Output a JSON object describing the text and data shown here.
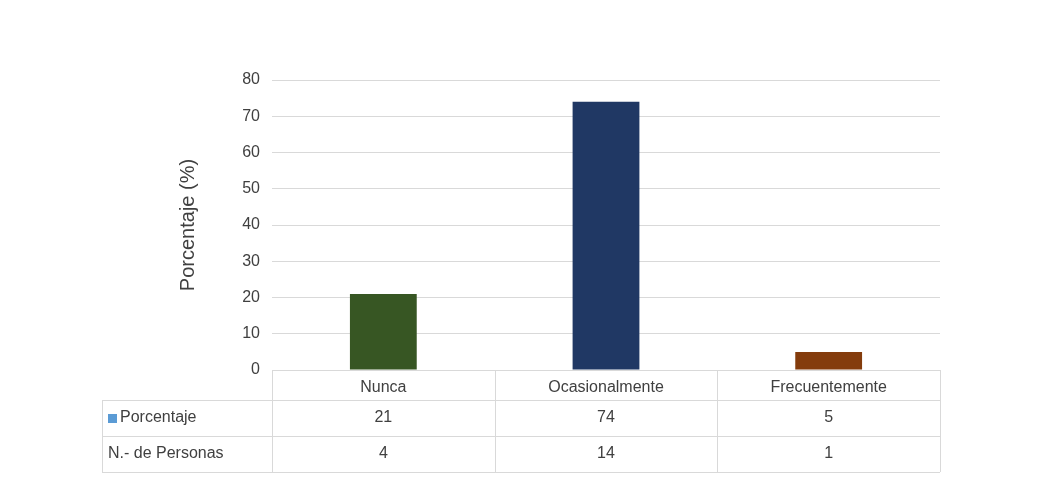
{
  "chart_data": {
    "type": "bar",
    "ylabel": "Porcentaje (%)",
    "categories": [
      "Nunca",
      "Ocasionalmente",
      "Frecuentemente"
    ],
    "series": [
      {
        "name": "Porcentaje",
        "color": "#5b9bd5",
        "colors": [
          "#375623",
          "#203864",
          "#843c0c"
        ],
        "values": [
          21,
          74,
          5
        ]
      }
    ],
    "ylim": [
      0,
      80
    ],
    "yticks": [
      0,
      10,
      20,
      30,
      40,
      50,
      60,
      70,
      80
    ],
    "grid": "y",
    "data_labels": true,
    "legend": "bottom",
    "annotations": [
      "N.- de Personas",
      "4",
      "14",
      "1"
    ]
  }
}
